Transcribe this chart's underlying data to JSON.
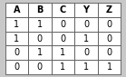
{
  "columns": [
    "A",
    "B",
    "C",
    "Y",
    "Z"
  ],
  "rows": [
    [
      "1",
      "1",
      "0",
      "0",
      "0"
    ],
    [
      "1",
      "0",
      "0",
      "1",
      "0"
    ],
    [
      "0",
      "1",
      "1",
      "0",
      "0"
    ],
    [
      "0",
      "0",
      "1",
      "1",
      "1"
    ]
  ],
  "header_bg": "#ffffff",
  "cell_bg": "#ffffff",
  "fig_bg": "#c8c8c8",
  "border_color": "#555555",
  "text_color": "#000000",
  "header_fontsize": 7,
  "cell_fontsize": 7,
  "figsize": [
    1.39,
    0.85
  ],
  "dpi": 100
}
